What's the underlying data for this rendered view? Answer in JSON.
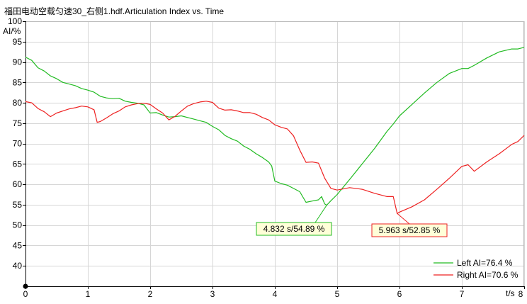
{
  "chart_data": {
    "type": "line",
    "title": "福田电动空载匀速30_右侧1.hdf.Articulation Index vs. Time",
    "ylabel": "AI/%",
    "xlabel": "t/s",
    "xlim": [
      0,
      8
    ],
    "ylim": [
      35,
      100
    ],
    "xticks": [
      0,
      1,
      2,
      3,
      4,
      5,
      6,
      7,
      8
    ],
    "yticks": [
      40,
      45,
      50,
      55,
      60,
      65,
      70,
      75,
      80,
      85,
      90,
      95,
      100
    ],
    "grid": true,
    "legend_position": "bottom-right",
    "series": [
      {
        "name": "Left AI=76.4 %",
        "color": "#22bb22",
        "x": [
          0,
          0.1,
          0.2,
          0.3,
          0.4,
          0.5,
          0.6,
          0.7,
          0.8,
          0.9,
          1.0,
          1.1,
          1.2,
          1.3,
          1.4,
          1.5,
          1.6,
          1.7,
          1.8,
          1.9,
          2.0,
          2.1,
          2.2,
          2.3,
          2.4,
          2.5,
          2.6,
          2.7,
          2.8,
          2.9,
          3.0,
          3.1,
          3.2,
          3.3,
          3.4,
          3.5,
          3.6,
          3.7,
          3.8,
          3.9,
          3.95,
          4.0,
          4.1,
          4.2,
          4.3,
          4.4,
          4.5,
          4.6,
          4.7,
          4.75,
          4.8,
          4.832,
          4.9,
          5.0,
          5.2,
          5.4,
          5.6,
          5.8,
          5.9,
          6.0,
          6.2,
          6.4,
          6.6,
          6.8,
          7.0,
          7.1,
          7.2,
          7.4,
          7.6,
          7.8,
          7.9,
          8.0
        ],
        "values": [
          91.2,
          90.4,
          88.6,
          87.8,
          86.6,
          85.9,
          85.0,
          84.6,
          84.2,
          83.5,
          83.1,
          82.6,
          81.6,
          81.2,
          81.0,
          81.1,
          80.4,
          80.1,
          79.9,
          79.5,
          77.5,
          77.6,
          77.0,
          76.5,
          76.6,
          76.8,
          76.4,
          76.0,
          75.6,
          75.2,
          74.2,
          73.4,
          72.0,
          71.2,
          70.6,
          69.4,
          68.6,
          67.5,
          66.6,
          65.5,
          64.5,
          60.8,
          60.2,
          59.8,
          59.0,
          58.2,
          55.6,
          55.9,
          56.2,
          57.0,
          55.2,
          54.89,
          56.0,
          57.5,
          61.2,
          65.0,
          68.8,
          73.0,
          74.8,
          76.8,
          79.6,
          82.4,
          85.0,
          87.2,
          88.4,
          88.4,
          89.2,
          91.0,
          92.5,
          93.2,
          93.2,
          93.6
        ]
      },
      {
        "name": "Right AI=70.6 %",
        "color": "#ee2222",
        "x": [
          0,
          0.1,
          0.2,
          0.3,
          0.4,
          0.5,
          0.6,
          0.7,
          0.8,
          0.9,
          1.0,
          1.1,
          1.15,
          1.2,
          1.3,
          1.4,
          1.5,
          1.6,
          1.7,
          1.8,
          1.9,
          2.0,
          2.1,
          2.2,
          2.3,
          2.4,
          2.5,
          2.6,
          2.7,
          2.8,
          2.9,
          3.0,
          3.1,
          3.2,
          3.3,
          3.4,
          3.5,
          3.6,
          3.7,
          3.8,
          3.9,
          4.0,
          4.1,
          4.2,
          4.3,
          4.4,
          4.5,
          4.6,
          4.7,
          4.8,
          4.9,
          5.0,
          5.2,
          5.4,
          5.6,
          5.8,
          5.9,
          5.963,
          6.0,
          6.2,
          6.4,
          6.6,
          6.8,
          7.0,
          7.1,
          7.2,
          7.4,
          7.6,
          7.8,
          7.9,
          8.0
        ],
        "values": [
          80.3,
          80.0,
          78.6,
          77.8,
          76.6,
          77.5,
          78.0,
          78.5,
          78.8,
          79.2,
          79.0,
          78.3,
          75.2,
          75.4,
          76.3,
          77.3,
          78.0,
          79.0,
          79.5,
          79.8,
          79.9,
          79.6,
          78.5,
          77.5,
          75.8,
          76.7,
          78.0,
          79.2,
          79.8,
          80.2,
          80.4,
          80.1,
          78.7,
          78.2,
          78.3,
          78.0,
          77.6,
          77.6,
          77.2,
          76.4,
          75.8,
          74.6,
          74.0,
          73.6,
          71.9,
          68.4,
          65.4,
          65.5,
          65.2,
          61.5,
          59.0,
          58.6,
          59.2,
          58.8,
          57.8,
          57.0,
          57.0,
          52.85,
          53.2,
          54.5,
          56.2,
          58.8,
          61.5,
          64.4,
          64.8,
          63.2,
          65.5,
          67.5,
          69.8,
          70.5,
          72.0
        ]
      }
    ],
    "annotations": [
      {
        "text": "4.832 s/54.89 %",
        "x": 4.832,
        "y": 54.89,
        "series": 0
      },
      {
        "text": "5.963 s/52.85 %",
        "x": 5.963,
        "y": 52.85,
        "series": 1
      }
    ]
  }
}
